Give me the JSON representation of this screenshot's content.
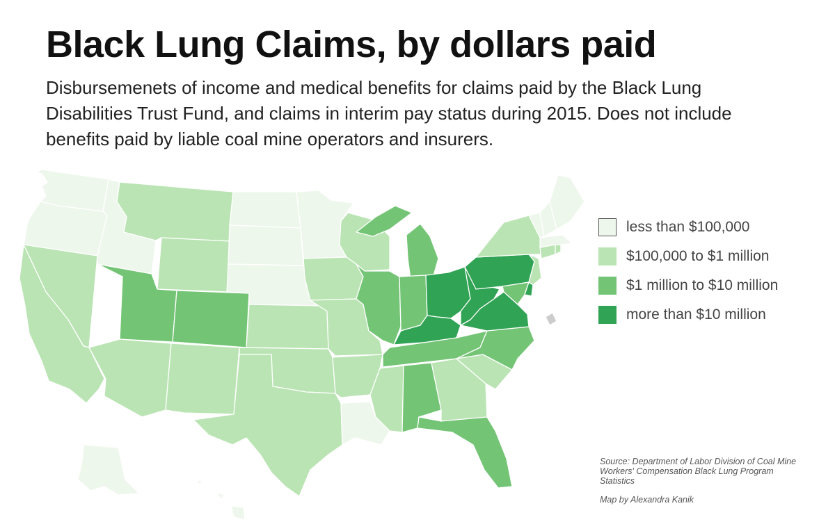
{
  "header": {
    "title": "Black Lung Claims, by dollars paid",
    "subtitle": "Disbursemenets of income and medical benefits for claims paid by the Black Lung Disabilities Trust Fund, and claims in interim pay status during 2015. Does not include benefits paid by liable coal mine operators and insurers."
  },
  "colors": {
    "tier_0": "#eef7ec",
    "tier_1": "#bae4b3",
    "tier_2": "#74c476",
    "tier_3": "#31a354",
    "no_data": "#cccccc",
    "border": "#ffffff"
  },
  "legend": {
    "items": [
      {
        "label": "less than $100,000",
        "color": "#eef7ec"
      },
      {
        "label": "$100,000 to $1 million",
        "color": "#bae4b3"
      },
      {
        "label": "$1 million to $10 million",
        "color": "#74c476"
      },
      {
        "label": "more than $10 million",
        "color": "#31a354"
      }
    ]
  },
  "map_data": {
    "type": "choropleth",
    "region": "United States",
    "states": {
      "Washington": 0,
      "Oregon": 0,
      "Idaho": 0,
      "Nevada": 1,
      "California": 1,
      "Montana": 1,
      "Wyoming": 1,
      "Utah": 2,
      "Colorado": 2,
      "Arizona": 1,
      "New Mexico": 1,
      "North Dakota": 0,
      "South Dakota": 0,
      "Nebraska": 0,
      "Kansas": 1,
      "Oklahoma": 1,
      "Texas": 1,
      "Minnesota": 0,
      "Iowa": 1,
      "Missouri": 1,
      "Arkansas": 1,
      "Louisiana": 0,
      "Wisconsin": 1,
      "Illinois": 2,
      "Michigan": 2,
      "Indiana": 2,
      "Ohio": 3,
      "Kentucky": 3,
      "Tennessee": 2,
      "Mississippi": 1,
      "Alabama": 2,
      "Georgia": 1,
      "Florida": 2,
      "South Carolina": 1,
      "North Carolina": 2,
      "Virginia": 3,
      "West Virginia": 3,
      "Pennsylvania": 3,
      "Maryland": 2,
      "Delaware": 3,
      "New Jersey": 1,
      "New York": 1,
      "Connecticut": 1,
      "Rhode Island": 1,
      "Massachusetts": 0,
      "Vermont": 0,
      "New Hampshire": 0,
      "Maine": 0,
      "Alaska": 0,
      "Hawaii": 0,
      "District of Columbia": "no data"
    }
  },
  "footer": {
    "source": "Source: Department of Labor Division of Coal Mine Workers' Compensation Black Lung Program Statistics",
    "credit": "Map by Alexandra Kanik"
  }
}
